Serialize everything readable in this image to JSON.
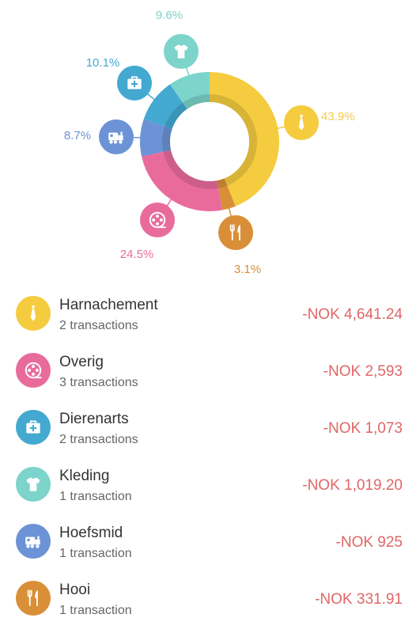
{
  "chart_data": {
    "type": "pie",
    "categories": [
      "Harnachement",
      "Hooi",
      "Overig",
      "Hoefsmid",
      "Dierenarts",
      "Kleding"
    ],
    "values": [
      43.9,
      3.1,
      24.5,
      8.7,
      10.1,
      9.6
    ],
    "labels": [
      "43.9%",
      "3.1%",
      "24.5%",
      "8.7%",
      "10.1%",
      "9.6%"
    ],
    "colors": [
      "#f5cc3f",
      "#d98f37",
      "#e96b9c",
      "#6c93d6",
      "#43a9d1",
      "#7cd4cb"
    ],
    "icons": [
      "tie-icon",
      "fork-knife-icon",
      "film-reel-icon",
      "train-icon",
      "medical-kit-icon",
      "tshirt-icon"
    ]
  },
  "categories": [
    {
      "name": "Harnachement",
      "transactions": "2 transactions",
      "amount": "-NOK 4,641.24",
      "color": "#f5cc3f",
      "icon": "tie-icon"
    },
    {
      "name": "Overig",
      "transactions": "3 transactions",
      "amount": "-NOK 2,593",
      "color": "#e96b9c",
      "icon": "film-reel-icon"
    },
    {
      "name": "Dierenarts",
      "transactions": "2 transactions",
      "amount": "-NOK 1,073",
      "color": "#43a9d1",
      "icon": "medical-kit-icon"
    },
    {
      "name": "Kleding",
      "transactions": "1 transaction",
      "amount": "-NOK 1,019.20",
      "color": "#7cd4cb",
      "icon": "tshirt-icon"
    },
    {
      "name": "Hoefsmid",
      "transactions": "1 transaction",
      "amount": "-NOK 925",
      "color": "#6c93d6",
      "icon": "train-icon"
    },
    {
      "name": "Hooi",
      "transactions": "1 transaction",
      "amount": "-NOK 331.91",
      "color": "#d98f37",
      "icon": "fork-knife-icon"
    }
  ]
}
